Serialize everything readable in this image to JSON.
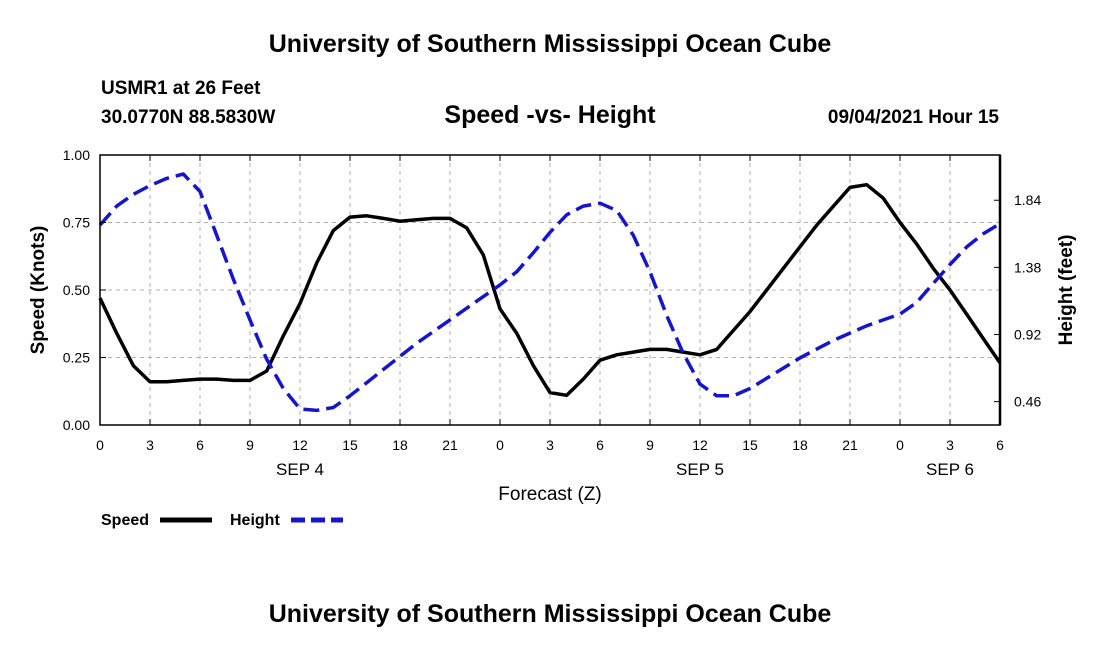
{
  "header": {
    "title": "University of Southern Mississippi Ocean Cube",
    "station": "USMR1 at 26 Feet",
    "coordinates": "30.0770N  88.5830W",
    "subtitle": "Speed -vs- Height",
    "datetime": "09/04/2021 Hour 15"
  },
  "footer": {
    "title": "University of Southern Mississippi Ocean Cube"
  },
  "chart_data": {
    "type": "line",
    "xlabel": "Forecast (Z)",
    "ylabel": "Speed (Knots)",
    "y2label": "Height (feet)",
    "x_unit": "hours since SEP 4 00Z",
    "xlim": [
      0,
      54
    ],
    "ylim": [
      0,
      1.0
    ],
    "y2lim": [
      0.3,
      2.15
    ],
    "x_ticks": [
      0,
      3,
      6,
      9,
      12,
      15,
      18,
      21,
      24,
      27,
      30,
      33,
      36,
      39,
      42,
      45,
      48,
      51,
      54
    ],
    "x_tick_labels": [
      "0",
      "3",
      "6",
      "9",
      "12",
      "15",
      "18",
      "21",
      "0",
      "3",
      "6",
      "9",
      "12",
      "15",
      "18",
      "21",
      "0",
      "3",
      "6"
    ],
    "date_labels": [
      {
        "x": 12,
        "text": "SEP 4"
      },
      {
        "x": 36,
        "text": "SEP 5"
      },
      {
        "x": 51,
        "text": "SEP 6"
      }
    ],
    "y_ticks": [
      0,
      0.25,
      0.5,
      0.75,
      1.0
    ],
    "y_tick_labels": [
      "0.00",
      "0.25",
      "0.50",
      "0.75",
      "1.00"
    ],
    "y2_ticks": [
      0.46,
      0.92,
      1.38,
      1.84
    ],
    "y2_tick_labels": [
      "0.46",
      "0.92",
      "1.38",
      "1.84"
    ],
    "grid": true,
    "legend_placement": "bottom-left",
    "series": [
      {
        "name": "Speed",
        "axis": "left",
        "color": "#000000",
        "dash": "solid",
        "x": [
          0,
          1,
          2,
          3,
          4,
          5,
          6,
          7,
          8,
          9,
          10,
          11,
          12,
          13,
          14,
          15,
          16,
          17,
          18,
          19,
          20,
          21,
          22,
          23,
          24,
          25,
          26,
          27,
          28,
          29,
          30,
          31,
          32,
          33,
          34,
          35,
          36,
          37,
          38,
          39,
          40,
          41,
          42,
          43,
          44,
          45,
          46,
          47,
          48,
          49,
          50,
          51,
          52,
          53,
          54
        ],
        "values": [
          0.47,
          0.34,
          0.22,
          0.16,
          0.16,
          0.165,
          0.17,
          0.17,
          0.165,
          0.165,
          0.2,
          0.33,
          0.45,
          0.6,
          0.72,
          0.77,
          0.775,
          0.765,
          0.755,
          0.76,
          0.765,
          0.765,
          0.73,
          0.63,
          0.43,
          0.34,
          0.22,
          0.12,
          0.11,
          0.17,
          0.24,
          0.26,
          0.27,
          0.28,
          0.28,
          0.27,
          0.26,
          0.28,
          0.35,
          0.42,
          0.5,
          0.58,
          0.66,
          0.74,
          0.81,
          0.88,
          0.89,
          0.84,
          0.75,
          0.67,
          0.58,
          0.5,
          0.41,
          0.32,
          0.23
        ]
      },
      {
        "name": "Height",
        "axis": "right",
        "color": "#1515cc",
        "dash": "dashed",
        "x": [
          0,
          1,
          2,
          3,
          4,
          5,
          6,
          7,
          8,
          9,
          10,
          11,
          12,
          13,
          14,
          15,
          16,
          17,
          18,
          19,
          20,
          21,
          22,
          23,
          24,
          25,
          26,
          27,
          28,
          29,
          30,
          31,
          32,
          33,
          34,
          35,
          36,
          37,
          38,
          39,
          40,
          41,
          42,
          43,
          44,
          45,
          46,
          47,
          48,
          49,
          50,
          51,
          52,
          53,
          54
        ],
        "values": [
          1.67,
          1.8,
          1.88,
          1.94,
          1.99,
          2.02,
          1.9,
          1.6,
          1.3,
          1.02,
          0.75,
          0.55,
          0.41,
          0.4,
          0.42,
          0.5,
          0.59,
          0.68,
          0.77,
          0.86,
          0.94,
          1.02,
          1.1,
          1.18,
          1.26,
          1.35,
          1.48,
          1.62,
          1.74,
          1.8,
          1.82,
          1.77,
          1.6,
          1.35,
          1.05,
          0.79,
          0.58,
          0.5,
          0.5,
          0.55,
          0.62,
          0.69,
          0.76,
          0.82,
          0.88,
          0.93,
          0.98,
          1.02,
          1.06,
          1.14,
          1.27,
          1.4,
          1.52,
          1.61,
          1.68
        ]
      }
    ]
  }
}
